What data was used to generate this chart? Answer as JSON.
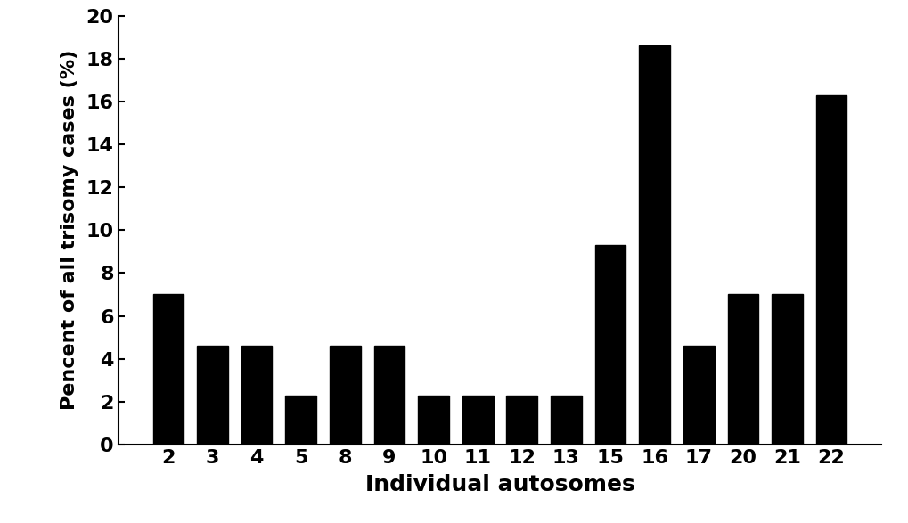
{
  "categories": [
    "2",
    "3",
    "4",
    "5",
    "8",
    "9",
    "10",
    "11",
    "12",
    "13",
    "15",
    "16",
    "17",
    "20",
    "21",
    "22"
  ],
  "values": [
    7.0,
    4.6,
    4.6,
    2.3,
    4.6,
    4.6,
    2.3,
    2.3,
    2.3,
    2.3,
    9.3,
    18.6,
    4.6,
    7.0,
    7.0,
    16.3
  ],
  "bar_color": "#000000",
  "xlabel": "Individual autosomes",
  "ylabel": "Pencent of all trisomy cases (%)",
  "ylim": [
    0,
    20
  ],
  "yticks": [
    0,
    2,
    4,
    6,
    8,
    10,
    12,
    14,
    16,
    18,
    20
  ],
  "background_color": "#ffffff",
  "xlabel_fontsize": 18,
  "ylabel_fontsize": 16,
  "tick_fontsize": 16,
  "bar_width": 0.7
}
